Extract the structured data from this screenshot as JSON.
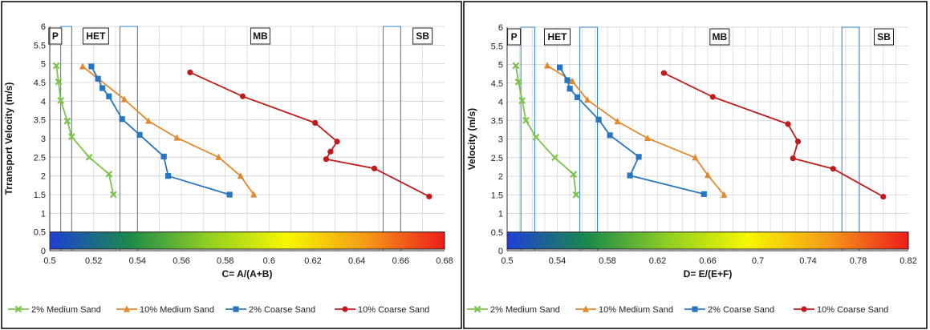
{
  "chart_data": [
    {
      "type": "line",
      "xlabel": "C= A/(A+B)",
      "ylabel": "Trransport Velocity (m/s)",
      "xlim": [
        0.5,
        0.68
      ],
      "ylim": [
        0,
        6
      ],
      "x_ticks": [
        "0.5",
        "0.52",
        "0.54",
        "0.56",
        "0.58",
        "0.6",
        "0.62",
        "0.64",
        "0.66",
        "0.68"
      ],
      "y_ticks": [
        "0",
        "0.5",
        "1",
        "1.5",
        "2",
        "2.5",
        "3",
        "3.5",
        "4",
        "4.5",
        "5",
        "5.5",
        "6"
      ],
      "grid": true,
      "legend_position": "bottom",
      "colorbar": {
        "y_range": [
          0,
          0.5
        ],
        "colors": [
          "#1f3fd6",
          "#1a8a4a",
          "#8fce22",
          "#f7f700",
          "#f59a16",
          "#ee1c1c"
        ]
      },
      "regions": [
        {
          "label": "P",
          "x_range": [
            0.5,
            0.505
          ]
        },
        {
          "label": "HET",
          "x_range": [
            0.51,
            0.532
          ]
        },
        {
          "label": "MB",
          "x_range": [
            0.54,
            0.652
          ]
        },
        {
          "label": "SB",
          "x_range": [
            0.66,
            0.68
          ]
        }
      ],
      "boundaries": [
        {
          "x_range": [
            0.505,
            0.51
          ]
        },
        {
          "x_range": [
            0.532,
            0.54
          ]
        },
        {
          "x_range": [
            0.652,
            0.66
          ]
        }
      ],
      "series": [
        {
          "name": "2% Medium Sand",
          "color": "#7dc24b",
          "marker": "x",
          "x": [
            0.503,
            0.504,
            0.505,
            0.508,
            0.51,
            0.518,
            0.527,
            0.529
          ],
          "y": [
            4.95,
            4.52,
            4.02,
            3.47,
            3.05,
            2.5,
            2.05,
            1.5
          ]
        },
        {
          "name": "10% Medium Sand",
          "color": "#e0892d",
          "marker": "triangle",
          "x": [
            0.515,
            0.534,
            0.545,
            0.558,
            0.577,
            0.587,
            0.593
          ],
          "y": [
            4.93,
            4.05,
            3.47,
            3.02,
            2.5,
            2.0,
            1.5
          ]
        },
        {
          "name": "2% Coarse Sand",
          "color": "#2876c0",
          "marker": "square",
          "x": [
            0.519,
            0.522,
            0.524,
            0.527,
            0.533,
            0.541,
            0.552,
            0.554,
            0.582
          ],
          "y": [
            4.93,
            4.6,
            4.35,
            4.13,
            3.52,
            3.1,
            2.52,
            2.0,
            1.5
          ]
        },
        {
          "name": "10% Coarse Sand",
          "color": "#c01a1a",
          "marker": "circle",
          "x": [
            0.564,
            0.588,
            0.621,
            0.631,
            0.628,
            0.626,
            0.648,
            0.673
          ],
          "y": [
            4.77,
            4.13,
            3.42,
            2.92,
            2.65,
            2.45,
            2.2,
            1.45
          ]
        }
      ]
    },
    {
      "type": "line",
      "xlabel": "D= E/(E+F)",
      "ylabel": "Velocity  (m/s)",
      "xlim": [
        0.5,
        0.82
      ],
      "ylim": [
        0,
        6
      ],
      "x_ticks": [
        "0.5",
        "0.54",
        "0.58",
        "0.62",
        "0.66",
        "0.7",
        "0.74",
        "0.78",
        "0.82"
      ],
      "y_ticks": [
        "0",
        "0.5",
        "1",
        "1.5",
        "2",
        "2.5",
        "3",
        "3.5",
        "4",
        "4.5",
        "5",
        "5.5",
        "6"
      ],
      "grid": true,
      "legend_position": "bottom",
      "colorbar": {
        "y_range": [
          0,
          0.5
        ],
        "colors": [
          "#1f3fd6",
          "#1a8a4a",
          "#8fce22",
          "#f7f700",
          "#f59a16",
          "#ee1c1c"
        ]
      },
      "regions": [
        {
          "label": "P",
          "x_range": [
            0.5,
            0.511
          ]
        },
        {
          "label": "HET",
          "x_range": [
            0.522,
            0.558
          ]
        },
        {
          "label": "MB",
          "x_range": [
            0.572,
            0.767
          ]
        },
        {
          "label": "SB",
          "x_range": [
            0.781,
            0.82
          ]
        }
      ],
      "boundaries": [
        {
          "x_range": [
            0.511,
            0.522
          ]
        },
        {
          "x_range": [
            0.558,
            0.572
          ]
        },
        {
          "x_range": [
            0.767,
            0.781
          ]
        }
      ],
      "series": [
        {
          "name": "2% Medium Sand",
          "color": "#7dc24b",
          "marker": "x",
          "x": [
            0.507,
            0.509,
            0.512,
            0.515,
            0.523,
            0.538,
            0.553,
            0.555
          ],
          "y": [
            4.97,
            4.53,
            4.03,
            3.5,
            3.05,
            2.5,
            2.05,
            1.5
          ]
        },
        {
          "name": "10% Medium Sand",
          "color": "#e0892d",
          "marker": "triangle",
          "x": [
            0.532,
            0.552,
            0.564,
            0.588,
            0.612,
            0.65,
            0.66,
            0.673
          ],
          "y": [
            4.97,
            4.55,
            4.05,
            3.47,
            3.02,
            2.5,
            2.03,
            1.5
          ]
        },
        {
          "name": "2% Coarse Sand",
          "color": "#2876c0",
          "marker": "square",
          "x": [
            0.542,
            0.548,
            0.55,
            0.556,
            0.573,
            0.582,
            0.605,
            0.598,
            0.657
          ],
          "y": [
            4.92,
            4.58,
            4.35,
            4.12,
            3.52,
            3.1,
            2.52,
            2.02,
            1.52
          ]
        },
        {
          "name": "10% Coarse Sand",
          "color": "#c01a1a",
          "marker": "circle",
          "x": [
            0.625,
            0.664,
            0.724,
            0.732,
            0.728,
            0.76,
            0.8
          ],
          "y": [
            4.77,
            4.13,
            3.4,
            2.93,
            2.48,
            2.2,
            1.45
          ]
        }
      ]
    }
  ]
}
